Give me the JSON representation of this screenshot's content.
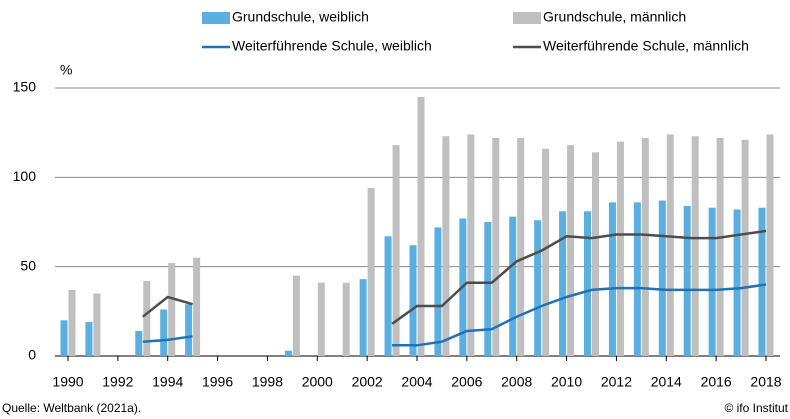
{
  "chart_data": {
    "type": "bar",
    "y_label": "%",
    "categories": [
      "1990",
      null,
      "1992",
      null,
      "1994",
      null,
      "1996",
      null,
      "1998",
      null,
      "2000",
      null,
      "2002",
      null,
      "2004",
      null,
      "2006",
      null,
      "2008",
      null,
      "2010",
      null,
      "2012",
      null,
      "2014",
      null,
      "2016",
      null,
      "2018"
    ],
    "ylim": [
      0,
      150
    ],
    "yticks": [
      0,
      50,
      100,
      150
    ],
    "grid": true,
    "series": [
      {
        "name": "Grundschule, weiblich",
        "type": "bar",
        "color": "#5aafe0",
        "values": [
          20,
          19,
          null,
          14,
          26,
          29,
          null,
          null,
          null,
          3,
          null,
          null,
          43,
          67,
          62,
          72,
          77,
          75,
          78,
          76,
          81,
          81,
          86,
          86,
          87,
          84,
          83,
          82,
          83
        ]
      },
      {
        "name": "Grundschule, männlich",
        "type": "bar",
        "color": "#bfbfbf",
        "values": [
          37,
          35,
          null,
          42,
          52,
          55,
          null,
          null,
          null,
          45,
          41,
          41,
          94,
          118,
          145,
          123,
          124,
          122,
          122,
          116,
          118,
          114,
          120,
          122,
          124,
          123,
          122,
          121,
          124
        ]
      },
      {
        "name": "Weiterführende Schule, weiblich",
        "type": "line",
        "color": "#1f72b5",
        "values": [
          null,
          null,
          null,
          8,
          9,
          11,
          null,
          null,
          null,
          null,
          null,
          null,
          null,
          6,
          6,
          8,
          14,
          15,
          22,
          28,
          33,
          37,
          38,
          38,
          37,
          37,
          37,
          38,
          40
        ]
      },
      {
        "name": "Weiterführende Schule, männlich",
        "type": "line",
        "color": "#4d4d4d",
        "values": [
          null,
          null,
          null,
          22,
          33,
          29,
          null,
          null,
          null,
          null,
          null,
          null,
          null,
          18,
          28,
          28,
          41,
          41,
          53,
          59,
          67,
          66,
          68,
          68,
          67,
          66,
          66,
          68,
          70
        ]
      }
    ],
    "source": "Quelle: Weltbank (2021a).",
    "credit": "© ifo Institut"
  }
}
